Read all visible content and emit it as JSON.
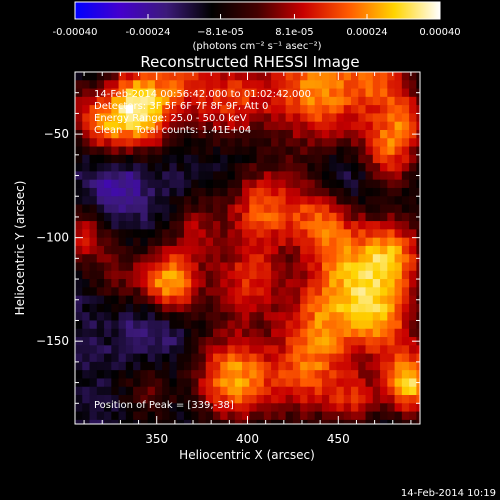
{
  "chart_data": {
    "type": "heatmap",
    "title": "Reconstructed RHESSI Image",
    "xlabel": "Heliocentric X (arcsec)",
    "ylabel": "Heliocentric Y (arcsec)",
    "xlim": [
      305,
      495
    ],
    "ylim": [
      -190,
      -20
    ],
    "x_ticks": [
      350,
      400,
      450
    ],
    "y_ticks": [
      -50,
      -100,
      -150
    ],
    "x_tick_labels": [
      "350",
      "400",
      "450"
    ],
    "y_tick_labels": [
      "−50",
      "−100",
      "−150"
    ],
    "colorbar": {
      "min": -0.0004,
      "max": 0.0004,
      "ticks": [
        -0.0004,
        -0.00024,
        -8.1e-05,
        8.1e-05,
        0.00024,
        0.0004
      ],
      "tick_labels": [
        "-0.00040",
        "-0.00024",
        "−8.1e-05",
        "8.1e-05",
        "0.00024",
        "0.00040"
      ],
      "unit_label": "(photons cm⁻² s⁻¹ asec⁻²)",
      "colors": [
        "#0000ff",
        "#4400cc",
        "#3c1a7a",
        "#000000",
        "#440000",
        "#c80000",
        "#ff5a00",
        "#ffd400",
        "#ffffff"
      ]
    },
    "annotations": [
      "14-Feb-2014 00:56:42.000 to 01:02:42.000",
      "Detectors: 3F 5F 6F 7F 8F 9F, Att 0",
      "Energy Range: 25.0 - 50.0 keV",
      "Clean    Total counts: 1.41E+04"
    ],
    "peak_label": "Position of Peak = [339,-38]",
    "peak": [
      339,
      -38
    ],
    "background_level": -0.00014,
    "sources": [
      {
        "x": 339,
        "y": -38,
        "amp": 0.00052,
        "w": 14
      },
      {
        "x": 362,
        "y": -22,
        "amp": 0.0002,
        "w": 10
      },
      {
        "x": 318,
        "y": -48,
        "amp": 0.0002,
        "w": 9
      },
      {
        "x": 305,
        "y": -35,
        "amp": 0.00015,
        "w": 8
      },
      {
        "x": 390,
        "y": -35,
        "amp": 0.0003,
        "w": 16
      },
      {
        "x": 440,
        "y": -28,
        "amp": 0.00038,
        "w": 20
      },
      {
        "x": 475,
        "y": -22,
        "amp": 0.00024,
        "w": 12
      },
      {
        "x": 478,
        "y": -58,
        "amp": 0.0003,
        "w": 12
      },
      {
        "x": 488,
        "y": -42,
        "amp": 0.0002,
        "w": 9
      },
      {
        "x": 408,
        "y": -85,
        "amp": 0.00032,
        "w": 15
      },
      {
        "x": 440,
        "y": -90,
        "amp": 0.00024,
        "w": 12
      },
      {
        "x": 372,
        "y": -95,
        "amp": 0.00018,
        "w": 10
      },
      {
        "x": 310,
        "y": -100,
        "amp": 0.00024,
        "w": 10
      },
      {
        "x": 328,
        "y": -118,
        "amp": 0.00014,
        "w": 10
      },
      {
        "x": 357,
        "y": -122,
        "amp": 0.00044,
        "w": 12
      },
      {
        "x": 400,
        "y": -122,
        "amp": 0.00026,
        "w": 14
      },
      {
        "x": 458,
        "y": -115,
        "amp": 0.00034,
        "w": 18
      },
      {
        "x": 482,
        "y": -108,
        "amp": 0.00026,
        "w": 12
      },
      {
        "x": 440,
        "y": -145,
        "amp": 0.00028,
        "w": 16
      },
      {
        "x": 475,
        "y": -140,
        "amp": 0.00028,
        "w": 14
      },
      {
        "x": 392,
        "y": -168,
        "amp": 0.0004,
        "w": 15
      },
      {
        "x": 430,
        "y": -170,
        "amp": 0.00024,
        "w": 14
      },
      {
        "x": 490,
        "y": -170,
        "amp": 0.00044,
        "w": 11
      },
      {
        "x": 458,
        "y": -178,
        "amp": 0.00022,
        "w": 10
      },
      {
        "x": 345,
        "y": -175,
        "amp": 0.00014,
        "w": 10
      }
    ],
    "dips": [
      {
        "x": 330,
        "y": -75,
        "amp": -0.00012,
        "w": 12
      },
      {
        "x": 455,
        "y": -72,
        "amp": -0.0001,
        "w": 12
      },
      {
        "x": 350,
        "y": -140,
        "amp": -0.00012,
        "w": 12
      },
      {
        "x": 395,
        "y": -60,
        "amp": -8e-05,
        "w": 14
      }
    ]
  },
  "footer": {
    "timestamp": "14-Feb-2014 10:19"
  }
}
